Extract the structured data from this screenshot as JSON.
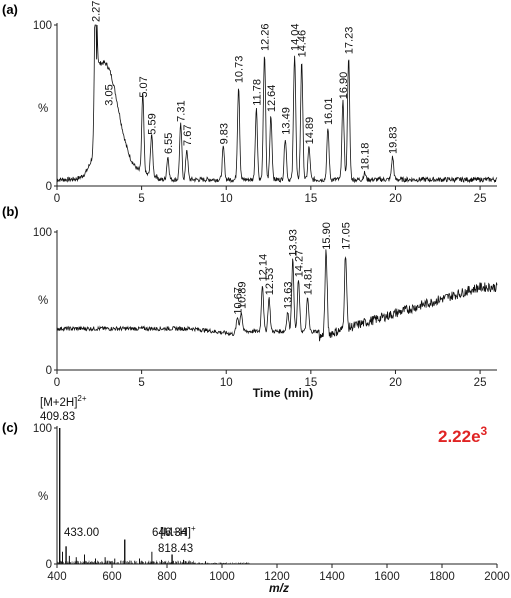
{
  "chart_data": [
    {
      "panel": "(a)",
      "type": "line",
      "ylabel": "%",
      "xlim": [
        0,
        26
      ],
      "ylim": [
        0,
        100
      ],
      "x_ticks": [
        "0",
        "5",
        "10",
        "15",
        "20",
        "25"
      ],
      "y_ticks": [
        "0",
        "100"
      ],
      "baseline": 4,
      "peaks": [
        {
          "label": "2.27",
          "x": 2.27,
          "y": 100
        },
        {
          "label": "3.05",
          "x": 3.05,
          "y": 48
        },
        {
          "label": "5.07",
          "x": 5.07,
          "y": 53
        },
        {
          "label": "5.59",
          "x": 5.59,
          "y": 30
        },
        {
          "label": "6.55",
          "x": 6.55,
          "y": 18
        },
        {
          "label": "7.31",
          "x": 7.31,
          "y": 38
        },
        {
          "label": "7.67",
          "x": 7.67,
          "y": 23
        },
        {
          "label": "9.83",
          "x": 9.83,
          "y": 24
        },
        {
          "label": "10.73",
          "x": 10.73,
          "y": 62
        },
        {
          "label": "11.78",
          "x": 11.78,
          "y": 48
        },
        {
          "label": "12.26",
          "x": 12.26,
          "y": 82
        },
        {
          "label": "12.64",
          "x": 12.64,
          "y": 44
        },
        {
          "label": "13.49",
          "x": 13.49,
          "y": 30
        },
        {
          "label": "14.04",
          "x": 14.04,
          "y": 82
        },
        {
          "label": "14.46",
          "x": 14.46,
          "y": 78
        },
        {
          "label": "14.89",
          "x": 14.89,
          "y": 24
        },
        {
          "label": "16.01",
          "x": 16.01,
          "y": 36
        },
        {
          "label": "16.90",
          "x": 16.9,
          "y": 52
        },
        {
          "label": "17.23",
          "x": 17.23,
          "y": 80
        },
        {
          "label": "18.18",
          "x": 18.18,
          "y": 8
        },
        {
          "label": "19.83",
          "x": 19.83,
          "y": 18
        }
      ]
    },
    {
      "panel": "(b)",
      "type": "line",
      "ylabel": "%",
      "xlabel": "Time (min)",
      "xlim": [
        0,
        26
      ],
      "ylim": [
        0,
        100
      ],
      "x_ticks": [
        "0",
        "5",
        "10",
        "15",
        "20",
        "25"
      ],
      "y_ticks": [
        "0",
        "100"
      ],
      "baseline_start": 30,
      "peaks": [
        {
          "label": "10.67",
          "x": 10.67,
          "y": 38
        },
        {
          "label": "10.89",
          "x": 10.89,
          "y": 42
        },
        {
          "label": "12.14",
          "x": 12.14,
          "y": 62
        },
        {
          "label": "12.53",
          "x": 12.53,
          "y": 52
        },
        {
          "label": "13.63",
          "x": 13.63,
          "y": 42
        },
        {
          "label": "13.93",
          "x": 13.93,
          "y": 80
        },
        {
          "label": "14.27",
          "x": 14.27,
          "y": 65
        },
        {
          "label": "14.81",
          "x": 14.81,
          "y": 52
        },
        {
          "label": "15.90",
          "x": 15.9,
          "y": 85
        },
        {
          "label": "17.05",
          "x": 17.05,
          "y": 85
        }
      ]
    },
    {
      "panel": "(c)",
      "type": "bar",
      "ylabel": "%",
      "xlabel": "m/z",
      "xlim": [
        400,
        2000
      ],
      "ylim": [
        0,
        100
      ],
      "x_ticks": [
        "400",
        "600",
        "800",
        "1000",
        "1200",
        "1400",
        "1600",
        "1800",
        "2000"
      ],
      "y_ticks": [
        "0",
        "100"
      ],
      "intensity": {
        "base": "2.22e",
        "exp": "3"
      },
      "ions": [
        {
          "mz": 409.83,
          "value": 100,
          "label": "409.83",
          "annotation": "[M+2H]",
          "charge": "2+"
        },
        {
          "mz": 433.0,
          "value": 13,
          "label": "433.00"
        },
        {
          "mz": 646.34,
          "value": 18,
          "label": "646.34"
        },
        {
          "mz": 818.43,
          "value": 7,
          "label": "818.43",
          "annotation": "[M+H]",
          "charge": "+"
        }
      ],
      "minor_peaks": [
        {
          "mz": 420,
          "value": 9
        },
        {
          "mz": 445,
          "value": 6
        },
        {
          "mz": 470,
          "value": 5
        },
        {
          "mz": 500,
          "value": 7
        },
        {
          "mz": 540,
          "value": 4
        },
        {
          "mz": 575,
          "value": 5
        },
        {
          "mz": 610,
          "value": 4
        },
        {
          "mz": 700,
          "value": 4
        },
        {
          "mz": 745,
          "value": 9
        },
        {
          "mz": 780,
          "value": 3
        },
        {
          "mz": 860,
          "value": 3
        },
        {
          "mz": 940,
          "value": 2
        }
      ]
    }
  ]
}
